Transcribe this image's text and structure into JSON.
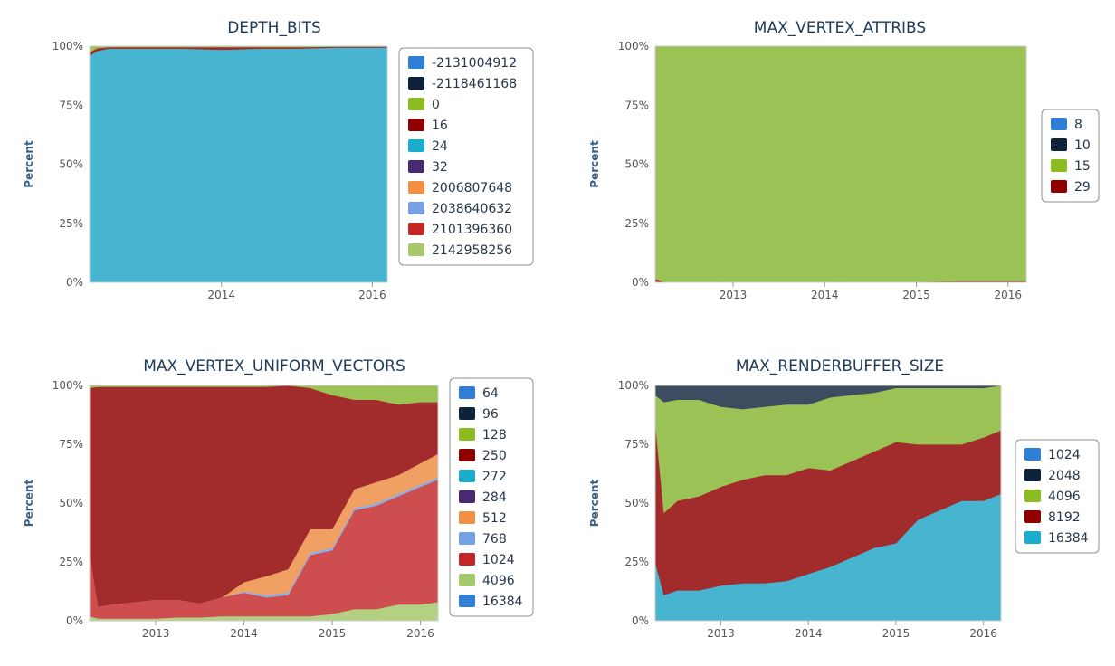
{
  "chart_data": [
    {
      "id": "depth_bits",
      "type": "area",
      "stacked": "percent",
      "title": "DEPTH_BITS",
      "ylabel": "Percent",
      "ylim": [
        0,
        100
      ],
      "yticks": [
        "0%",
        "25%",
        "50%",
        "75%",
        "100%"
      ],
      "xticks": [
        {
          "label": "2014",
          "x": 2014.0
        },
        {
          "label": "2016",
          "x": 2016.0
        }
      ],
      "xlim": [
        2012.25,
        2016.2
      ],
      "x": [
        2012.25,
        2012.35,
        2012.5,
        2013.0,
        2013.5,
        2014.0,
        2014.5,
        2015.0,
        2015.5,
        2016.2
      ],
      "series": [
        {
          "name": "24",
          "color": "#47b4d0",
          "values": [
            96,
            98,
            99,
            99,
            99,
            98.5,
            99,
            99,
            99.5,
            99.5
          ]
        },
        {
          "name": "16",
          "color": "#a22c2c",
          "values": [
            1.5,
            1.2,
            0.6,
            0.6,
            0.6,
            1.2,
            0.7,
            0.6,
            0.4,
            0.4
          ]
        },
        {
          "name": "0",
          "color": "#9bc255",
          "values": [
            2.5,
            0.8,
            0.4,
            0.4,
            0.4,
            0.3,
            0.3,
            0.4,
            0.1,
            0.1
          ]
        }
      ],
      "legend": [
        {
          "label": "-2131004912",
          "color": "#2f7ed8"
        },
        {
          "label": "-2118461168",
          "color": "#0d233a"
        },
        {
          "label": "0",
          "color": "#8bbc21"
        },
        {
          "label": "16",
          "color": "#910000"
        },
        {
          "label": "24",
          "color": "#1aadce"
        },
        {
          "label": "32",
          "color": "#492970"
        },
        {
          "label": "2006807648",
          "color": "#f28f43"
        },
        {
          "label": "2038640632",
          "color": "#77a1e5"
        },
        {
          "label": "2101396360",
          "color": "#c42525"
        },
        {
          "label": "2142958256",
          "color": "#a6c96a"
        }
      ]
    },
    {
      "id": "max_vertex_attribs",
      "type": "area",
      "stacked": "percent",
      "title": "MAX_VERTEX_ATTRIBS",
      "ylabel": "Percent",
      "ylim": [
        0,
        100
      ],
      "yticks": [
        "0%",
        "25%",
        "50%",
        "75%",
        "100%"
      ],
      "xticks": [
        {
          "label": "2013",
          "x": 2013.0
        },
        {
          "label": "2014",
          "x": 2014.0
        },
        {
          "label": "2015",
          "x": 2015.0
        },
        {
          "label": "2016",
          "x": 2016.0
        }
      ],
      "xlim": [
        2012.15,
        2016.2
      ],
      "x": [
        2012.15,
        2012.25,
        2013.0,
        2014.0,
        2015.0,
        2015.5,
        2016.2
      ],
      "series": [
        {
          "name": "29",
          "color": "#a22c2c",
          "values": [
            1.5,
            0.3,
            0.2,
            0.2,
            0.3,
            0.6,
            0.6
          ]
        },
        {
          "name": "15",
          "color": "#9bc255",
          "values": [
            98.5,
            99.7,
            99.8,
            99.8,
            99.7,
            99.4,
            99.4
          ]
        }
      ],
      "legend": [
        {
          "label": "8",
          "color": "#2f7ed8"
        },
        {
          "label": "10",
          "color": "#0d233a"
        },
        {
          "label": "15",
          "color": "#8bbc21"
        },
        {
          "label": "29",
          "color": "#910000"
        }
      ]
    },
    {
      "id": "max_vertex_uniform_vectors",
      "type": "area",
      "stacked": "percent",
      "title": "MAX_VERTEX_UNIFORM_VECTORS",
      "ylabel": "Percent",
      "ylim": [
        0,
        100
      ],
      "yticks": [
        "0%",
        "25%",
        "50%",
        "75%",
        "100%"
      ],
      "xticks": [
        {
          "label": "2013",
          "x": 2013.0
        },
        {
          "label": "2014",
          "x": 2014.0
        },
        {
          "label": "2015",
          "x": 2015.0
        },
        {
          "label": "2016",
          "x": 2016.0
        }
      ],
      "xlim": [
        2012.25,
        2016.2
      ],
      "x": [
        2012.25,
        2012.35,
        2012.5,
        2012.75,
        2013.0,
        2013.25,
        2013.5,
        2013.75,
        2014.0,
        2014.25,
        2014.5,
        2014.75,
        2015.0,
        2015.25,
        2015.5,
        2015.75,
        2016.0,
        2016.2
      ],
      "series": [
        {
          "name": "4096",
          "color": "#b4d083",
          "values": [
            2,
            1,
            1,
            1,
            1,
            1.5,
            1.5,
            2,
            2,
            2,
            2,
            2,
            3,
            5,
            5,
            7,
            7,
            8
          ]
        },
        {
          "name": "1024",
          "color": "#ce4d4f",
          "values": [
            27,
            5,
            6,
            7,
            8,
            7.5,
            6,
            8,
            10,
            8,
            9,
            26,
            27,
            42,
            44,
            46,
            50,
            52
          ]
        },
        {
          "name": "768",
          "color": "#8eaee7",
          "values": [
            0,
            0,
            0,
            0,
            0,
            0,
            0,
            0,
            0.5,
            1,
            1,
            1,
            1,
            1,
            1,
            1,
            1,
            1
          ]
        },
        {
          "name": "512",
          "color": "#efa062",
          "values": [
            0,
            0,
            0,
            0,
            0,
            0,
            0,
            0,
            4,
            8,
            10,
            10,
            8,
            8,
            9,
            8,
            9,
            10
          ]
        },
        {
          "name": "250",
          "color": "#a22c2c",
          "values": [
            70,
            93.5,
            92.5,
            91.5,
            90.5,
            90.5,
            92,
            89.5,
            83,
            80.5,
            78,
            60,
            57,
            38,
            35,
            30,
            26,
            22
          ]
        },
        {
          "name": "128",
          "color": "#9bc255",
          "values": [
            1,
            0.5,
            0.5,
            0.5,
            0.5,
            0.5,
            0.5,
            0.5,
            0.5,
            0.5,
            0.5,
            1,
            4,
            6,
            6,
            8,
            7,
            7
          ]
        }
      ],
      "legend": [
        {
          "label": "64",
          "color": "#2f7ed8"
        },
        {
          "label": "96",
          "color": "#0d233a"
        },
        {
          "label": "128",
          "color": "#8bbc21"
        },
        {
          "label": "250",
          "color": "#910000"
        },
        {
          "label": "272",
          "color": "#1aadce"
        },
        {
          "label": "284",
          "color": "#492970"
        },
        {
          "label": "512",
          "color": "#f28f43"
        },
        {
          "label": "768",
          "color": "#77a1e5"
        },
        {
          "label": "1024",
          "color": "#c42525"
        },
        {
          "label": "4096",
          "color": "#a6c96a"
        },
        {
          "label": "16384",
          "color": "#2f7ed8"
        }
      ]
    },
    {
      "id": "max_renderbuffer_size",
      "type": "area",
      "stacked": "percent",
      "title": "MAX_RENDERBUFFER_SIZE",
      "ylabel": "Percent",
      "ylim": [
        0,
        100
      ],
      "yticks": [
        "0%",
        "25%",
        "50%",
        "75%",
        "100%"
      ],
      "xticks": [
        {
          "label": "2013",
          "x": 2013.0
        },
        {
          "label": "2014",
          "x": 2014.0
        },
        {
          "label": "2015",
          "x": 2015.0
        },
        {
          "label": "2016",
          "x": 2016.0
        }
      ],
      "xlim": [
        2012.25,
        2016.2
      ],
      "x": [
        2012.25,
        2012.35,
        2012.5,
        2012.75,
        2013.0,
        2013.25,
        2013.5,
        2013.75,
        2014.0,
        2014.25,
        2014.5,
        2014.75,
        2015.0,
        2015.25,
        2015.5,
        2015.75,
        2016.0,
        2016.2
      ],
      "series": [
        {
          "name": "16384",
          "color": "#47b4d0",
          "values": [
            25,
            11,
            13,
            13,
            15,
            16,
            16,
            17,
            20,
            23,
            27,
            31,
            33,
            43,
            47,
            51,
            51,
            54
          ]
        },
        {
          "name": "8192",
          "color": "#a22c2c",
          "values": [
            60,
            35,
            38,
            40,
            42,
            44,
            46,
            45,
            45,
            41,
            41,
            41,
            43,
            32,
            28,
            24,
            27,
            27
          ]
        },
        {
          "name": "4096",
          "color": "#9bc255",
          "values": [
            11,
            47,
            43,
            41,
            34,
            30,
            29,
            30,
            27,
            31,
            28,
            25,
            23,
            24,
            24,
            24,
            21,
            19
          ]
        },
        {
          "name": "2048",
          "color": "#3d4c5e",
          "values": [
            4,
            7,
            6,
            6,
            9,
            10,
            9,
            8,
            8,
            5,
            4,
            3,
            1,
            1,
            1,
            1,
            1,
            0
          ]
        }
      ],
      "legend": [
        {
          "label": "1024",
          "color": "#2f7ed8"
        },
        {
          "label": "2048",
          "color": "#0d233a"
        },
        {
          "label": "4096",
          "color": "#8bbc21"
        },
        {
          "label": "8192",
          "color": "#910000"
        },
        {
          "label": "16384",
          "color": "#1aadce"
        }
      ]
    }
  ]
}
